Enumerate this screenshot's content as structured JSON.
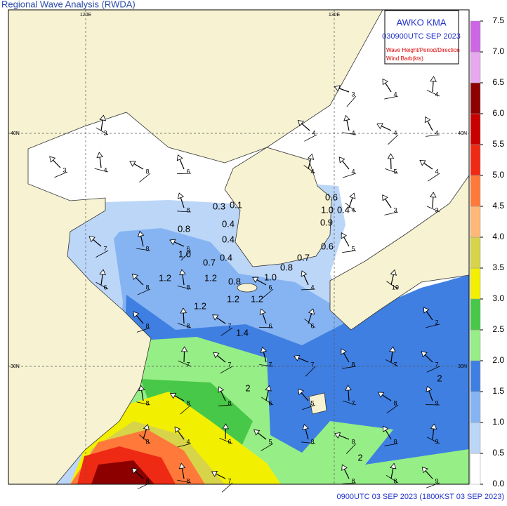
{
  "header": {
    "title": "Regional Wave Analysis (RWDA)"
  },
  "info_box": {
    "lines": [
      "AWKO KMA",
      "030900UTC SEP 2023",
      "Wave Height/Period/Direction",
      "Wind Barb(kts)"
    ]
  },
  "grid_labels": {
    "lon": [
      "120E",
      "130E"
    ],
    "lat": [
      "40N",
      "30N"
    ]
  },
  "contour_labels": [
    "0.3",
    "0.1",
    "0.4",
    "0.8",
    "0.4",
    "1.0",
    "0.7",
    "0.4",
    "0.8",
    "0.7",
    "0.6",
    "1.0",
    "0.4",
    "0.9",
    "0.6",
    "1.2",
    "1.2",
    "0.8",
    "1.0",
    "1.2",
    "1.2",
    "1.2",
    "1.4",
    "2",
    "2",
    "2"
  ],
  "period_labels": [
    "3",
    "4",
    "4",
    "4",
    "4",
    "4",
    "4",
    "3",
    "3",
    "4",
    "8",
    "6",
    "4",
    "4",
    "5",
    "4",
    "8",
    "4",
    "3",
    "3",
    "7",
    "8",
    "6",
    "5",
    "6",
    "8",
    "8",
    "6",
    "4",
    "19",
    "8",
    "8",
    "7",
    "6",
    "6",
    "2",
    "7",
    "7",
    "7",
    "7",
    "8",
    "7",
    "7",
    "8",
    "8",
    "8",
    "6",
    "5",
    "7",
    "8",
    "9",
    "8",
    "4",
    "6",
    "5",
    "8",
    "8",
    "8",
    "9",
    "8",
    "8",
    "7",
    "8",
    "8",
    "9"
  ],
  "colorbar": {
    "ticks": [
      {
        "value": 0,
        "label": "0.0"
      },
      {
        "value": 0.5,
        "label": "0.5"
      },
      {
        "value": 1,
        "label": "1.0"
      },
      {
        "value": 1.5,
        "label": "1.5"
      },
      {
        "value": 2,
        "label": "2.0"
      },
      {
        "value": 2.5,
        "label": "2.5"
      },
      {
        "value": 3,
        "label": "3.0"
      },
      {
        "value": 3.5,
        "label": "3.5"
      },
      {
        "value": 4,
        "label": "4.0"
      },
      {
        "value": 4.5,
        "label": "4.5"
      },
      {
        "value": 5,
        "label": "5.0"
      },
      {
        "value": 5.5,
        "label": "5.5"
      },
      {
        "value": 6,
        "label": "6.0"
      },
      {
        "value": 6.5,
        "label": "6.5"
      },
      {
        "value": 7,
        "label": "7.0"
      },
      {
        "value": 7.5,
        "label": "7.5"
      }
    ],
    "colors": [
      "#ffffff",
      "#bcd6f8",
      "#86b4f2",
      "#3f7fe2",
      "#96ee86",
      "#48c848",
      "#f2f000",
      "#d8d44a",
      "#ffb878",
      "#ff7a3a",
      "#ee2a14",
      "#c80000",
      "#8c0000",
      "#e8a8ee",
      "#cc66e4"
    ]
  },
  "footer": "0900UTC 03 SEP 2023 (1800KST 03 SEP 2023)"
}
